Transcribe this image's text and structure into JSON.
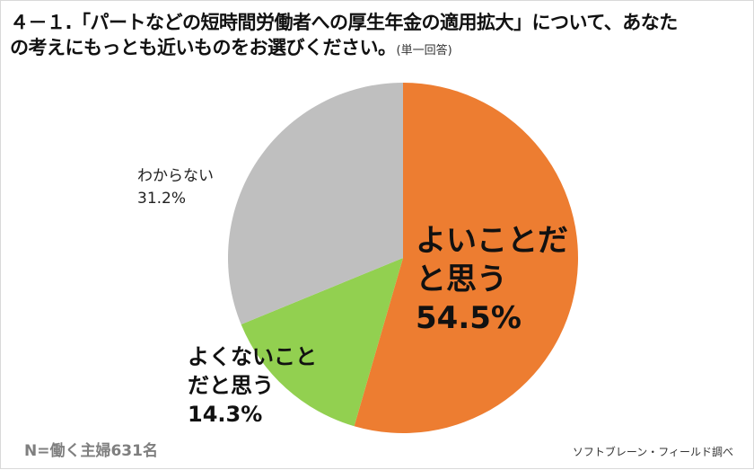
{
  "title": {
    "line1": "４－１.「パートなどの短時間労働者への厚生年金の適用拡大」について、あなた",
    "line2": "の考えにもっとも近いものをお選びください。",
    "note": "(単一回答)"
  },
  "footnote": "N=働く主婦631名",
  "source": "ソフトブレーン・フィールド調べ",
  "labels": {
    "good_line1": "よいことだ",
    "good_line2": "と思う",
    "good_pct": "54.5%",
    "bad_line1": "よくないこと",
    "bad_line2": "だと思う",
    "bad_pct": "14.3%",
    "unknown_line1": "わからない",
    "unknown_pct": "31.2%"
  },
  "chart_data": {
    "type": "pie",
    "title": "４－１.「パートなどの短時間労働者への厚生年金の適用拡大」について、あなたの考えにもっとも近いものをお選びください。(単一回答)",
    "categories": [
      "よいことだと思う",
      "よくないことだと思う",
      "わからない"
    ],
    "values": [
      54.5,
      14.3,
      31.2
    ],
    "colors": [
      "#ed7d31",
      "#92d050",
      "#bfbfbf"
    ],
    "start_angle_deg": 0,
    "direction": "clockwise",
    "sample": "N=働く主婦631名",
    "legend": "none (direct labels)"
  }
}
